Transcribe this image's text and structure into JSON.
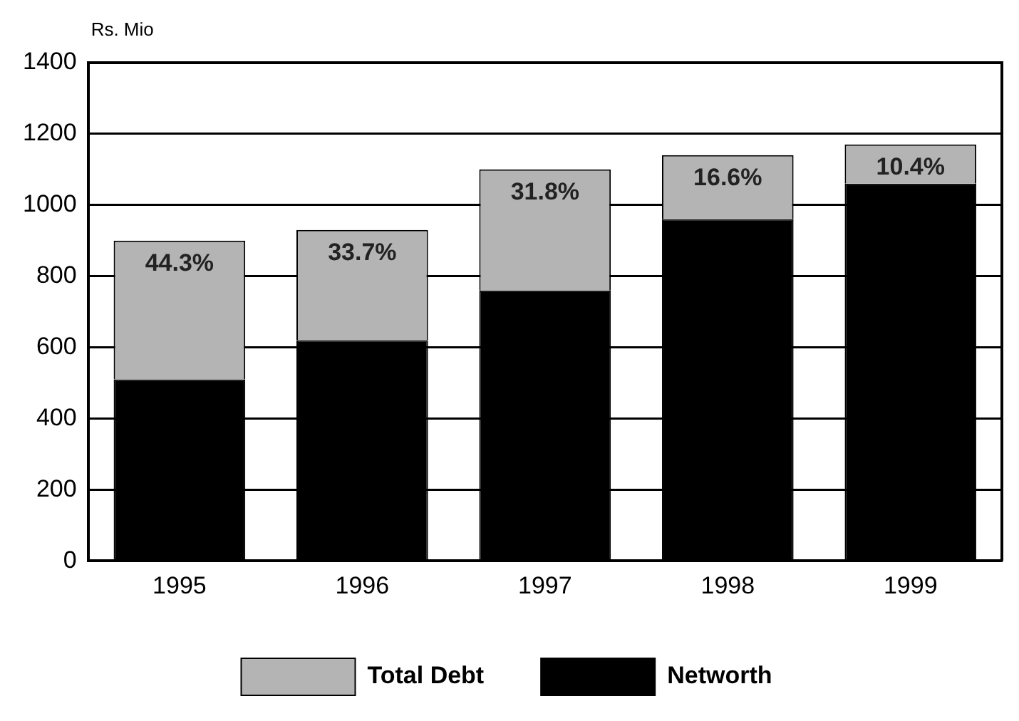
{
  "chart_data": {
    "type": "bar",
    "stacked": true,
    "ylabel": "Rs. Mio",
    "categories": [
      "1995",
      "1996",
      "1997",
      "1998",
      "1999"
    ],
    "series": [
      {
        "name": "Networth",
        "color": "#000000",
        "values": [
          510,
          620,
          760,
          960,
          1060
        ]
      },
      {
        "name": "Total Debt",
        "color": "#b4b4b4",
        "values": [
          390,
          310,
          340,
          180,
          110
        ]
      }
    ],
    "ylim": [
      0,
      1400
    ],
    "yticks": [
      0,
      200,
      400,
      600,
      800,
      1000,
      1200,
      1400
    ],
    "grid": "y",
    "legend": "bottom",
    "annotations": [
      "44.3%",
      "33.7%",
      "31.8%",
      "16.6%",
      "10.4%"
    ]
  }
}
